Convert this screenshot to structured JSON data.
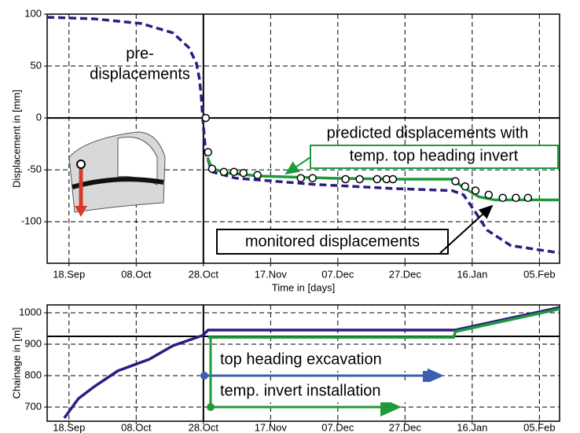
{
  "chart_data": [
    {
      "type": "line",
      "y_label": "Displacement in [mm]",
      "x_label": "Time in [days]",
      "xlim": [
        -6.5,
        146
      ],
      "ylim": [
        -140,
        100
      ],
      "xticks": [
        {
          "value": 0,
          "label": "18.Sep"
        },
        {
          "value": 20,
          "label": "08.Oct"
        },
        {
          "value": 40,
          "label": "28.Oct"
        },
        {
          "value": 60,
          "label": "17.Nov"
        },
        {
          "value": 80,
          "label": "07.Dec"
        },
        {
          "value": 100,
          "label": "27.Dec"
        },
        {
          "value": 120,
          "label": "16.Jan"
        },
        {
          "value": 140,
          "label": "05.Feb"
        }
      ],
      "yticks": [
        -100,
        -50,
        0,
        50,
        100
      ],
      "grid": true,
      "series": [
        {
          "color": "#2b1d80",
          "style": "dashed",
          "x": [
            -6.5,
            7.5,
            21.5,
            30.9,
            35.6,
            37.9,
            38.8,
            39.3,
            39.8,
            40.7,
            42.6,
            49.6,
            73,
            96.4,
            114,
            117.4,
            121,
            124.4,
            131.5,
            146
          ],
          "values": [
            97,
            95.5,
            91,
            82,
            68,
            53,
            38,
            23,
            0,
            -34,
            -52,
            -58,
            -64,
            -68,
            -70,
            -74,
            -91,
            -108,
            -123,
            -130
          ]
        },
        {
          "color": "#1f9a3a",
          "style": "solid",
          "x": [
            41.2,
            42.6,
            47.3,
            56.6,
            77.7,
            96.4,
            114,
            117.4,
            122,
            126.8,
            146
          ],
          "values": [
            -38,
            -49,
            -53,
            -56,
            -58,
            -59,
            -59,
            -67,
            -76,
            -79,
            -79
          ]
        },
        {
          "color": "#000000",
          "style": "points",
          "x": [
            40.7,
            41.4,
            42.6,
            46.1,
            49.1,
            51.9,
            56.1,
            69,
            72.5,
            82.3,
            86.5,
            91.7,
            94.5,
            96.4,
            115,
            117.9,
            121,
            124.9,
            129.1,
            133,
            136.6
          ],
          "values": [
            0,
            -33,
            -49,
            -52,
            -52,
            -53,
            -55,
            -58,
            -58,
            -59,
            -59,
            -59,
            -59,
            -59,
            -61,
            -66,
            -70,
            -74,
            -77,
            -77,
            -77
          ]
        }
      ],
      "annotations": [
        "pre-",
        "displacements",
        "predicted displacements with",
        "temp. top heading invert",
        "monitored displacements"
      ]
    },
    {
      "type": "line",
      "y_label": "Chainage in [m]",
      "xlim": [
        -6.5,
        146
      ],
      "ylim": [
        655,
        1025
      ],
      "xticks": [
        {
          "value": 0,
          "label": "18.Sep"
        },
        {
          "value": 20,
          "label": "08.Oct"
        },
        {
          "value": 40,
          "label": "28.Oct"
        },
        {
          "value": 60,
          "label": "17.Nov"
        },
        {
          "value": 80,
          "label": "07.Dec"
        },
        {
          "value": 100,
          "label": "27.Dec"
        },
        {
          "value": 120,
          "label": "16.Jan"
        },
        {
          "value": 140,
          "label": "05.Feb"
        }
      ],
      "yticks": [
        700,
        800,
        900,
        1000
      ],
      "grid": true,
      "hline": 925,
      "series": [
        {
          "color": "#2b1d80",
          "style": "solid",
          "x": [
            -1.4,
            2.8,
            7.5,
            14.5,
            23.9,
            30.9,
            39.8,
            41.4,
            115,
            146
          ],
          "values": [
            665,
            727,
            765,
            815,
            852,
            895,
            928,
            945,
            945,
            1017
          ]
        },
        {
          "color": "#1f9a3a",
          "style": "solid",
          "x": [
            41.4,
            114.5,
            115,
            146
          ],
          "values": [
            922,
            922,
            940,
            1012
          ]
        }
      ],
      "annotations": [
        "top heading excavation",
        "temp. invert installation"
      ]
    }
  ]
}
